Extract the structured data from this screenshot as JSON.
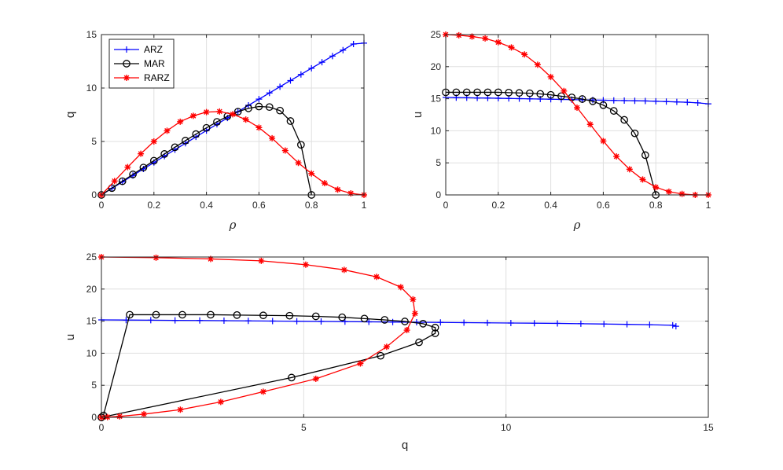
{
  "colors": {
    "ARZ": "#0000ff",
    "MAR": "#000000",
    "RARZ": "#ff0000"
  },
  "markers": {
    "ARZ": "plus",
    "MAR": "circle",
    "RARZ": "asterisk"
  },
  "legend": {
    "entries": [
      "ARZ",
      "MAR",
      "RARZ"
    ],
    "placement": "top-left",
    "panel": 0
  },
  "chart_data": [
    {
      "type": "line",
      "xlabel": "ρ",
      "ylabel": "q",
      "xlim": [
        0,
        1
      ],
      "ylim": [
        0,
        15
      ],
      "xticks": [
        0,
        0.2,
        0.4,
        0.6,
        0.8,
        1
      ],
      "xtick_labels": [
        "0",
        "0.2",
        "0.4",
        "0.6",
        "0.8",
        "1"
      ],
      "yticks": [
        0,
        5,
        10,
        15
      ],
      "ytick_labels": [
        "0",
        "5",
        "10",
        "15"
      ],
      "grid": true,
      "series": [
        {
          "name": "ARZ",
          "x": [
            0,
            0.04,
            0.08,
            0.12,
            0.16,
            0.2,
            0.24,
            0.28,
            0.32,
            0.36,
            0.4,
            0.44,
            0.48,
            0.52,
            0.56,
            0.6,
            0.64,
            0.68,
            0.72,
            0.76,
            0.8,
            0.84,
            0.88,
            0.92,
            0.96,
            1.0
          ],
          "y": [
            0,
            0.61,
            1.22,
            1.82,
            2.43,
            3.03,
            3.63,
            4.23,
            4.83,
            5.43,
            6.02,
            6.61,
            7.2,
            7.79,
            8.38,
            8.96,
            9.54,
            10.12,
            10.7,
            11.27,
            11.85,
            12.42,
            12.99,
            13.55,
            14.12,
            14.2
          ]
        },
        {
          "name": "MAR",
          "x": [
            0,
            0.04,
            0.08,
            0.12,
            0.16,
            0.2,
            0.24,
            0.28,
            0.32,
            0.36,
            0.4,
            0.44,
            0.48,
            0.52,
            0.56,
            0.6,
            0.64,
            0.68,
            0.72,
            0.76,
            0.8
          ],
          "y": [
            0,
            0.64,
            1.28,
            1.92,
            2.56,
            3.2,
            3.83,
            4.46,
            5.08,
            5.69,
            6.27,
            6.83,
            7.36,
            7.79,
            8.1,
            8.27,
            8.22,
            7.89,
            6.91,
            4.69,
            0
          ]
        },
        {
          "name": "RARZ",
          "x": [
            0,
            0.05,
            0.1,
            0.15,
            0.2,
            0.25,
            0.3,
            0.35,
            0.4,
            0.45,
            0.5,
            0.55,
            0.6,
            0.65,
            0.7,
            0.75,
            0.8,
            0.85,
            0.9,
            0.95,
            1.0
          ],
          "y": [
            0,
            1.3,
            2.6,
            3.85,
            5.0,
            6.0,
            6.85,
            7.4,
            7.75,
            7.8,
            7.55,
            7.05,
            6.3,
            5.3,
            4.15,
            3.0,
            2.0,
            1.1,
            0.5,
            0.15,
            0
          ]
        }
      ]
    },
    {
      "type": "line",
      "xlabel": "ρ",
      "ylabel": "u",
      "xlim": [
        0,
        1
      ],
      "ylim": [
        0,
        25
      ],
      "xticks": [
        0,
        0.2,
        0.4,
        0.6,
        0.8,
        1
      ],
      "xtick_labels": [
        "0",
        "0.2",
        "0.4",
        "0.6",
        "0.8",
        "1"
      ],
      "yticks": [
        0,
        5,
        10,
        15,
        20,
        25
      ],
      "ytick_labels": [
        "0",
        "5",
        "10",
        "15",
        "20",
        "25"
      ],
      "grid": true,
      "series": [
        {
          "name": "ARZ",
          "x": [
            0,
            0.04,
            0.08,
            0.12,
            0.16,
            0.2,
            0.24,
            0.28,
            0.32,
            0.36,
            0.4,
            0.44,
            0.48,
            0.52,
            0.56,
            0.6,
            0.64,
            0.68,
            0.72,
            0.76,
            0.8,
            0.84,
            0.88,
            0.92,
            0.96,
            1.0
          ],
          "y": [
            15.2,
            15.17,
            15.15,
            15.12,
            15.1,
            15.07,
            15.04,
            15.01,
            14.98,
            14.95,
            14.92,
            14.89,
            14.86,
            14.83,
            14.8,
            14.77,
            14.74,
            14.71,
            14.68,
            14.65,
            14.6,
            14.55,
            14.5,
            14.45,
            14.35,
            14.2
          ]
        },
        {
          "name": "MAR",
          "x": [
            0,
            0.04,
            0.08,
            0.12,
            0.16,
            0.2,
            0.24,
            0.28,
            0.32,
            0.36,
            0.4,
            0.44,
            0.48,
            0.52,
            0.56,
            0.6,
            0.64,
            0.68,
            0.72,
            0.76,
            0.8
          ],
          "y": [
            16,
            16,
            16,
            16,
            16,
            16,
            15.95,
            15.9,
            15.85,
            15.75,
            15.6,
            15.4,
            15.2,
            14.95,
            14.6,
            14.0,
            13.1,
            11.7,
            9.6,
            6.2,
            0
          ]
        },
        {
          "name": "RARZ",
          "x": [
            0,
            0.05,
            0.1,
            0.15,
            0.2,
            0.25,
            0.3,
            0.35,
            0.4,
            0.45,
            0.5,
            0.55,
            0.6,
            0.65,
            0.7,
            0.75,
            0.8,
            0.85,
            0.9,
            0.95,
            1.0
          ],
          "y": [
            25,
            24.9,
            24.7,
            24.4,
            23.8,
            23,
            21.9,
            20.3,
            18.4,
            16.2,
            13.6,
            11,
            8.4,
            6.0,
            4.0,
            2.4,
            1.2,
            0.5,
            0.15,
            0,
            0
          ]
        }
      ]
    },
    {
      "type": "line",
      "xlabel": "q",
      "ylabel": "u",
      "xlim": [
        0,
        15
      ],
      "ylim": [
        0,
        25
      ],
      "xticks": [
        0,
        5,
        10,
        15
      ],
      "xtick_labels": [
        "0",
        "5",
        "10",
        "15"
      ],
      "yticks": [
        0,
        5,
        10,
        15,
        20,
        25
      ],
      "ytick_labels": [
        "0",
        "5",
        "10",
        "15",
        "20",
        "25"
      ],
      "grid": true,
      "series": [
        {
          "name": "ARZ",
          "x": [
            0,
            0.61,
            1.22,
            1.82,
            2.43,
            3.03,
            3.63,
            4.23,
            4.83,
            5.43,
            6.02,
            6.61,
            7.2,
            7.79,
            8.38,
            8.96,
            9.54,
            10.12,
            10.7,
            11.27,
            11.85,
            12.42,
            12.99,
            13.55,
            14.12,
            14.2
          ],
          "y": [
            15.2,
            15.17,
            15.15,
            15.12,
            15.1,
            15.07,
            15.04,
            15.01,
            14.98,
            14.95,
            14.92,
            14.89,
            14.86,
            14.83,
            14.8,
            14.77,
            14.74,
            14.71,
            14.68,
            14.65,
            14.6,
            14.55,
            14.5,
            14.45,
            14.35,
            14.2
          ]
        },
        {
          "name": "MAR",
          "x": [
            0,
            0.05,
            0.7,
            1.35,
            2.0,
            2.7,
            3.35,
            4.0,
            4.65,
            5.3,
            5.95,
            6.5,
            7.0,
            7.5,
            7.95,
            8.25,
            8.25,
            7.85,
            6.9,
            4.7,
            0
          ],
          "y": [
            0,
            0.3,
            16,
            16,
            16,
            16,
            15.95,
            15.9,
            15.85,
            15.75,
            15.6,
            15.4,
            15.2,
            14.95,
            14.6,
            14.0,
            13.1,
            11.7,
            9.6,
            6.2,
            0
          ]
        },
        {
          "name": "RARZ",
          "x": [
            0,
            1.35,
            2.7,
            3.95,
            5.05,
            6.0,
            6.8,
            7.4,
            7.7,
            7.75,
            7.55,
            7.05,
            6.4,
            5.3,
            4.0,
            2.95,
            1.95,
            1.05,
            0.45,
            0.15,
            0
          ],
          "y": [
            25,
            24.9,
            24.7,
            24.4,
            23.8,
            23,
            21.9,
            20.3,
            18.4,
            16.2,
            13.6,
            11,
            8.4,
            6.0,
            4.0,
            2.4,
            1.2,
            0.5,
            0.15,
            0.05,
            0
          ]
        }
      ]
    }
  ]
}
